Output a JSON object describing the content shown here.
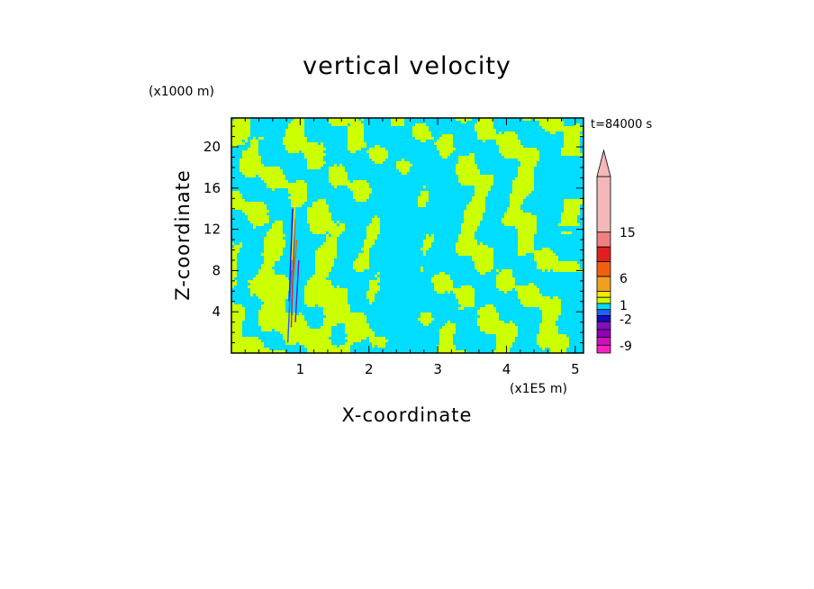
{
  "chart_data": {
    "type": "heatmap",
    "title": "vertical velocity",
    "xlabel": "X-coordinate",
    "ylabel": "Z-coordinate",
    "x_unit_label": "(x1E5 m)",
    "y_unit_label": "(x1000 m)",
    "time_label": "t=84000 s",
    "xlim": [
      0,
      5.12
    ],
    "ylim": [
      0,
      22.8
    ],
    "x_ticks": [
      1,
      2,
      3,
      4,
      5
    ],
    "y_ticks": [
      4,
      8,
      12,
      16,
      20
    ],
    "colorbar": {
      "levels": [
        -9,
        -2,
        1,
        6,
        15
      ],
      "tick_labels": [
        "15",
        "6",
        "1",
        "-2",
        "-9"
      ],
      "bands_top_to_bottom": [
        {
          "max": "open",
          "color": "#f4b8b8"
        },
        {
          "max": 15,
          "color": "#f08080"
        },
        {
          "max": 12,
          "color": "#e02020"
        },
        {
          "max": 9,
          "color": "#f06010"
        },
        {
          "max": 6,
          "color": "#f0a020"
        },
        {
          "max": 3,
          "color": "#ffe800"
        },
        {
          "max": 2,
          "color": "#ccff00"
        },
        {
          "max": 1,
          "color": "#00ddff"
        },
        {
          "max": -1,
          "color": "#2060ff"
        },
        {
          "max": -2,
          "color": "#1010c0"
        },
        {
          "max": -4,
          "color": "#8010c0"
        },
        {
          "max": -6,
          "color": "#9000b0"
        },
        {
          "max": -8,
          "color": "#d010c0"
        },
        {
          "max": -10,
          "color": "#ff20c0"
        }
      ],
      "extend": "max"
    },
    "dominant_colors": {
      "positive_weak": "#ccff00",
      "negative_weak": "#00ddff"
    }
  }
}
